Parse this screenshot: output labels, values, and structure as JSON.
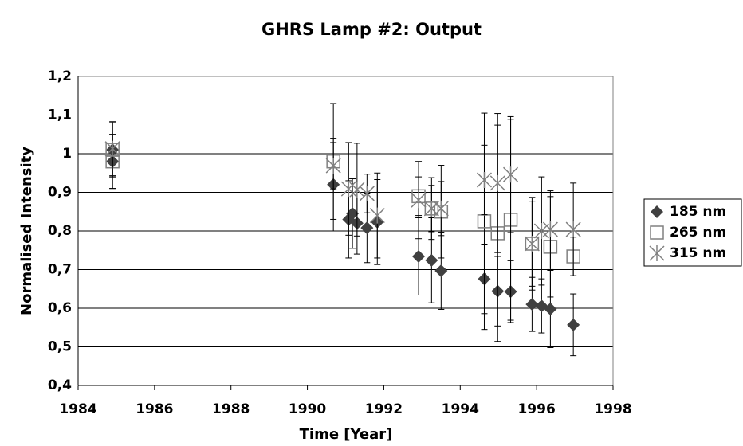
{
  "chart_data": {
    "type": "scatter",
    "title": "GHRS Lamp #2: Output",
    "xlabel": "Time [Year]",
    "ylabel": "Normalised Intensity",
    "xlim": [
      1984,
      1998
    ],
    "xticks": [
      1984,
      1986,
      1988,
      1990,
      1992,
      1994,
      1996,
      1998
    ],
    "ylim": [
      0.4,
      1.2
    ],
    "yticks": [
      {
        "value": 0.4,
        "label": "0,4"
      },
      {
        "value": 0.5,
        "label": "0,5"
      },
      {
        "value": 0.6,
        "label": "0,6"
      },
      {
        "value": 0.7,
        "label": "0,7"
      },
      {
        "value": 0.8,
        "label": "0,8"
      },
      {
        "value": 0.9,
        "label": "0,9"
      },
      1,
      {
        "value": 1.1,
        "label": "1,1"
      },
      {
        "value": 1.2,
        "label": "1,2"
      }
    ],
    "grid": true,
    "legend": "right",
    "series": [
      {
        "name": "185 nm",
        "color": "#404040",
        "marker": "diamond",
        "x": [
          1984.9,
          1984.9,
          1990.68,
          1991.08,
          1991.18,
          1991.3,
          1991.56,
          1991.83,
          1992.91,
          1993.25,
          1993.5,
          1994.63,
          1994.98,
          1995.32,
          1995.88,
          1996.13,
          1996.36,
          1996.96
        ],
        "values": [
          0.98,
          1.01,
          0.92,
          0.83,
          0.845,
          0.82,
          0.808,
          0.823,
          0.734,
          0.724,
          0.697,
          0.676,
          0.644,
          0.643,
          0.61,
          0.606,
          0.598,
          0.557
        ],
        "errors": [
          0.07,
          0.07,
          0.12,
          0.1,
          0.09,
          0.08,
          0.09,
          0.11,
          0.1,
          0.11,
          0.1,
          0.09,
          0.09,
          0.08,
          0.07,
          0.07,
          0.1,
          0.08
        ]
      },
      {
        "name": "265 nm",
        "color": "#808080",
        "marker": "square",
        "x": [
          1984.9,
          1984.9,
          1990.68,
          1992.91,
          1993.25,
          1993.5,
          1994.63,
          1994.98,
          1995.32,
          1995.88,
          1996.36,
          1996.96
        ],
        "values": [
          1.01,
          0.98,
          0.98,
          0.89,
          0.858,
          0.85,
          0.825,
          0.794,
          0.829,
          0.767,
          0.759,
          0.734
        ],
        "errors": [
          0.07,
          0.07,
          0.15,
          0.05,
          0.08,
          0.12,
          0.28,
          0.28,
          0.26,
          0.11,
          0.13,
          0.05
        ]
      },
      {
        "name": "315 nm",
        "color": "#808080",
        "marker": "star",
        "x": [
          1984.9,
          1990.68,
          1991.08,
          1991.3,
          1991.56,
          1991.83,
          1992.91,
          1993.25,
          1993.5,
          1994.63,
          1994.98,
          1995.32,
          1995.88,
          1996.13,
          1996.36,
          1996.96
        ],
        "values": [
          1.013,
          0.969,
          0.909,
          0.907,
          0.897,
          0.84,
          0.88,
          0.858,
          0.858,
          0.932,
          0.924,
          0.946,
          0.767,
          0.8,
          0.804,
          0.804
        ],
        "errors": [
          0.07,
          0.06,
          0.12,
          0.12,
          0.05,
          0.11,
          0.1,
          0.06,
          0.07,
          0.09,
          0.18,
          0.15,
          0.12,
          0.14,
          0.1,
          0.12
        ]
      }
    ]
  }
}
